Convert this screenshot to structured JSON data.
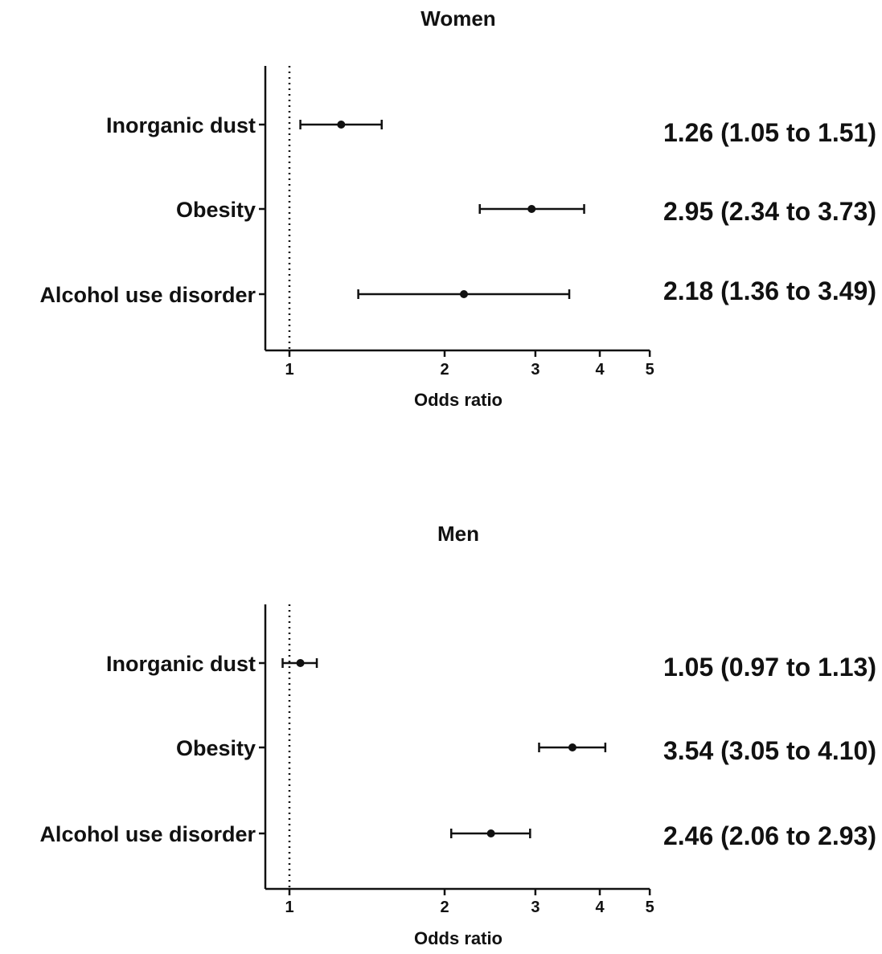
{
  "chart_data": [
    {
      "type": "forest",
      "title": "Women",
      "xlabel": "Odds ratio",
      "x_scale": "log",
      "xlim": [
        0.9,
        5
      ],
      "x_ticks": [
        1,
        2,
        3,
        4,
        5
      ],
      "reference_line": 1,
      "categories": [
        "Inorganic dust",
        "Obesity",
        "Alcohol use disorder"
      ],
      "estimates": [
        1.26,
        2.95,
        2.18
      ],
      "ci_lower": [
        1.05,
        2.34,
        1.36
      ],
      "ci_upper": [
        1.51,
        3.73,
        3.49
      ],
      "labels": [
        "1.26 (1.05 to 1.51)",
        "2.95 (2.34 to 3.73)",
        "2.18 (1.36 to 3.49)"
      ]
    },
    {
      "type": "forest",
      "title": "Men",
      "xlabel": "Odds ratio",
      "x_scale": "log",
      "xlim": [
        0.9,
        5
      ],
      "x_ticks": [
        1,
        2,
        3,
        4,
        5
      ],
      "reference_line": 1,
      "categories": [
        "Inorganic dust",
        "Obesity",
        "Alcohol use disorder"
      ],
      "estimates": [
        1.05,
        3.54,
        2.46
      ],
      "ci_lower": [
        0.97,
        3.05,
        2.06
      ],
      "ci_upper": [
        1.13,
        4.1,
        2.93
      ],
      "labels": [
        "1.05 (0.97 to 1.13)",
        "3.54 (3.05 to 4.10)",
        "2.46 (2.06 to 2.93)"
      ]
    }
  ],
  "colors": {
    "ink": "#111111",
    "background": "#ffffff"
  }
}
